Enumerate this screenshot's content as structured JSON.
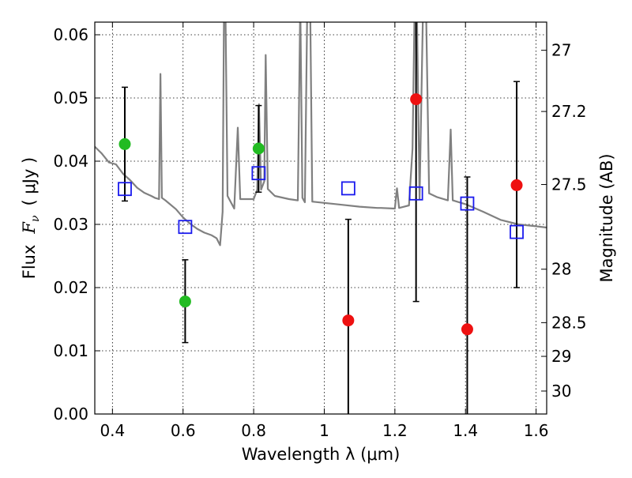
{
  "chart_data": {
    "type": "scatter",
    "xlabel": "Wavelength  λ (μm)",
    "ylabel": "Flux  F_ν  ( μJy )",
    "ylabel_parts": {
      "flux": "Flux",
      "symbol": "F",
      "subscript": "ν",
      "unit": "( μJy )"
    },
    "y2label": "Magnitude (AB)",
    "xlim": [
      0.35,
      1.63
    ],
    "ylim": [
      0.0,
      0.062
    ],
    "grid": true,
    "grid_style": "dotted",
    "x_ticks": [
      {
        "value": 0.4,
        "label": "0.4"
      },
      {
        "value": 0.6,
        "label": "0.6"
      },
      {
        "value": 0.8,
        "label": "0.8"
      },
      {
        "value": 1.0,
        "label": "1"
      },
      {
        "value": 1.2,
        "label": "1.2"
      },
      {
        "value": 1.4,
        "label": "1.4"
      },
      {
        "value": 1.6,
        "label": "1.6"
      }
    ],
    "y_ticks": [
      {
        "value": 0.0,
        "label": "0.00"
      },
      {
        "value": 0.01,
        "label": "0.01"
      },
      {
        "value": 0.02,
        "label": "0.02"
      },
      {
        "value": 0.03,
        "label": "0.03"
      },
      {
        "value": 0.04,
        "label": "0.04"
      },
      {
        "value": 0.05,
        "label": "0.05"
      },
      {
        "value": 0.06,
        "label": "0.06"
      }
    ],
    "y2_ticks": [
      {
        "value": 27.0,
        "label": "27"
      },
      {
        "value": 27.2,
        "label": "27.2"
      },
      {
        "value": 27.5,
        "label": "27.5"
      },
      {
        "value": 28.0,
        "label": "28"
      },
      {
        "value": 28.5,
        "label": "28.5"
      },
      {
        "value": 29.0,
        "label": "29"
      },
      {
        "value": 30.0,
        "label": "30"
      }
    ],
    "colors": {
      "detected": "#22bb22",
      "undetected": "#ee1111",
      "model_photometry": "#1a1aee",
      "spectrum": "#808080",
      "errorbar": "#000000"
    },
    "series": [
      {
        "kind": "observed_flux",
        "points": [
          {
            "x": 0.435,
            "y": 0.0427,
            "err_low": 0.0337,
            "err_high": 0.0517,
            "color": "#22bb22"
          },
          {
            "x": 0.606,
            "y": 0.0178,
            "err_low": 0.0113,
            "err_high": 0.0244,
            "color": "#22bb22"
          },
          {
            "x": 0.814,
            "y": 0.042,
            "err_low": 0.0351,
            "err_high": 0.0488,
            "color": "#22bb22"
          },
          {
            "x": 1.068,
            "y": 0.0148,
            "err_low": 0.0,
            "err_high": 0.0308,
            "color": "#ee1111"
          },
          {
            "x": 1.26,
            "y": 0.0498,
            "err_low": 0.0178,
            "err_high": 0.0625,
            "color": "#ee1111"
          },
          {
            "x": 1.405,
            "y": 0.0134,
            "err_low": 0.0,
            "err_high": 0.0375,
            "color": "#ee1111"
          },
          {
            "x": 1.545,
            "y": 0.0362,
            "err_low": 0.02,
            "err_high": 0.0526,
            "color": "#ee1111"
          }
        ]
      },
      {
        "kind": "model_photometry",
        "marker": "open-square",
        "points": [
          {
            "x": 0.435,
            "y": 0.0356
          },
          {
            "x": 0.606,
            "y": 0.0296
          },
          {
            "x": 0.814,
            "y": 0.0381
          },
          {
            "x": 1.068,
            "y": 0.0357
          },
          {
            "x": 1.26,
            "y": 0.0349
          },
          {
            "x": 1.405,
            "y": 0.0333
          },
          {
            "x": 1.545,
            "y": 0.0288
          }
        ]
      },
      {
        "kind": "model_spectrum",
        "line": [
          [
            0.35,
            0.0423
          ],
          [
            0.37,
            0.0412
          ],
          [
            0.39,
            0.0398
          ],
          [
            0.41,
            0.0395
          ],
          [
            0.43,
            0.038
          ],
          [
            0.45,
            0.037
          ],
          [
            0.47,
            0.0358
          ],
          [
            0.49,
            0.035
          ],
          [
            0.51,
            0.0345
          ],
          [
            0.52,
            0.0342
          ],
          [
            0.532,
            0.034
          ],
          [
            0.536,
            0.0538
          ],
          [
            0.54,
            0.0342
          ],
          [
            0.55,
            0.0338
          ],
          [
            0.58,
            0.0324
          ],
          [
            0.6,
            0.0311
          ],
          [
            0.62,
            0.0301
          ],
          [
            0.64,
            0.0293
          ],
          [
            0.66,
            0.0287
          ],
          [
            0.68,
            0.0283
          ],
          [
            0.695,
            0.0278
          ],
          [
            0.705,
            0.0267
          ],
          [
            0.712,
            0.032
          ],
          [
            0.716,
            0.065
          ],
          [
            0.72,
            0.065
          ],
          [
            0.726,
            0.0345
          ],
          [
            0.745,
            0.0325
          ],
          [
            0.755,
            0.0453
          ],
          [
            0.762,
            0.034
          ],
          [
            0.8,
            0.034
          ],
          [
            0.81,
            0.0355
          ],
          [
            0.815,
            0.049
          ],
          [
            0.821,
            0.0355
          ],
          [
            0.83,
            0.0368
          ],
          [
            0.834,
            0.0568
          ],
          [
            0.84,
            0.0356
          ],
          [
            0.86,
            0.0345
          ],
          [
            0.9,
            0.034
          ],
          [
            0.925,
            0.0338
          ],
          [
            0.932,
            0.065
          ],
          [
            0.938,
            0.0342
          ],
          [
            0.945,
            0.0335
          ],
          [
            0.952,
            0.065
          ],
          [
            0.96,
            0.065
          ],
          [
            0.966,
            0.0336
          ],
          [
            1.0,
            0.0334
          ],
          [
            1.05,
            0.0331
          ],
          [
            1.1,
            0.0328
          ],
          [
            1.15,
            0.0326
          ],
          [
            1.16,
            0.0326
          ],
          [
            1.2,
            0.0325
          ],
          [
            1.206,
            0.0357
          ],
          [
            1.212,
            0.0326
          ],
          [
            1.24,
            0.033
          ],
          [
            1.25,
            0.042
          ],
          [
            1.256,
            0.065
          ],
          [
            1.262,
            0.065
          ],
          [
            1.27,
            0.034
          ],
          [
            1.28,
            0.065
          ],
          [
            1.288,
            0.065
          ],
          [
            1.297,
            0.0349
          ],
          [
            1.32,
            0.0343
          ],
          [
            1.35,
            0.0338
          ],
          [
            1.358,
            0.045
          ],
          [
            1.364,
            0.0338
          ],
          [
            1.4,
            0.0332
          ],
          [
            1.45,
            0.032
          ],
          [
            1.5,
            0.0307
          ],
          [
            1.55,
            0.03
          ],
          [
            1.6,
            0.0297
          ],
          [
            1.63,
            0.0295
          ]
        ]
      }
    ]
  }
}
